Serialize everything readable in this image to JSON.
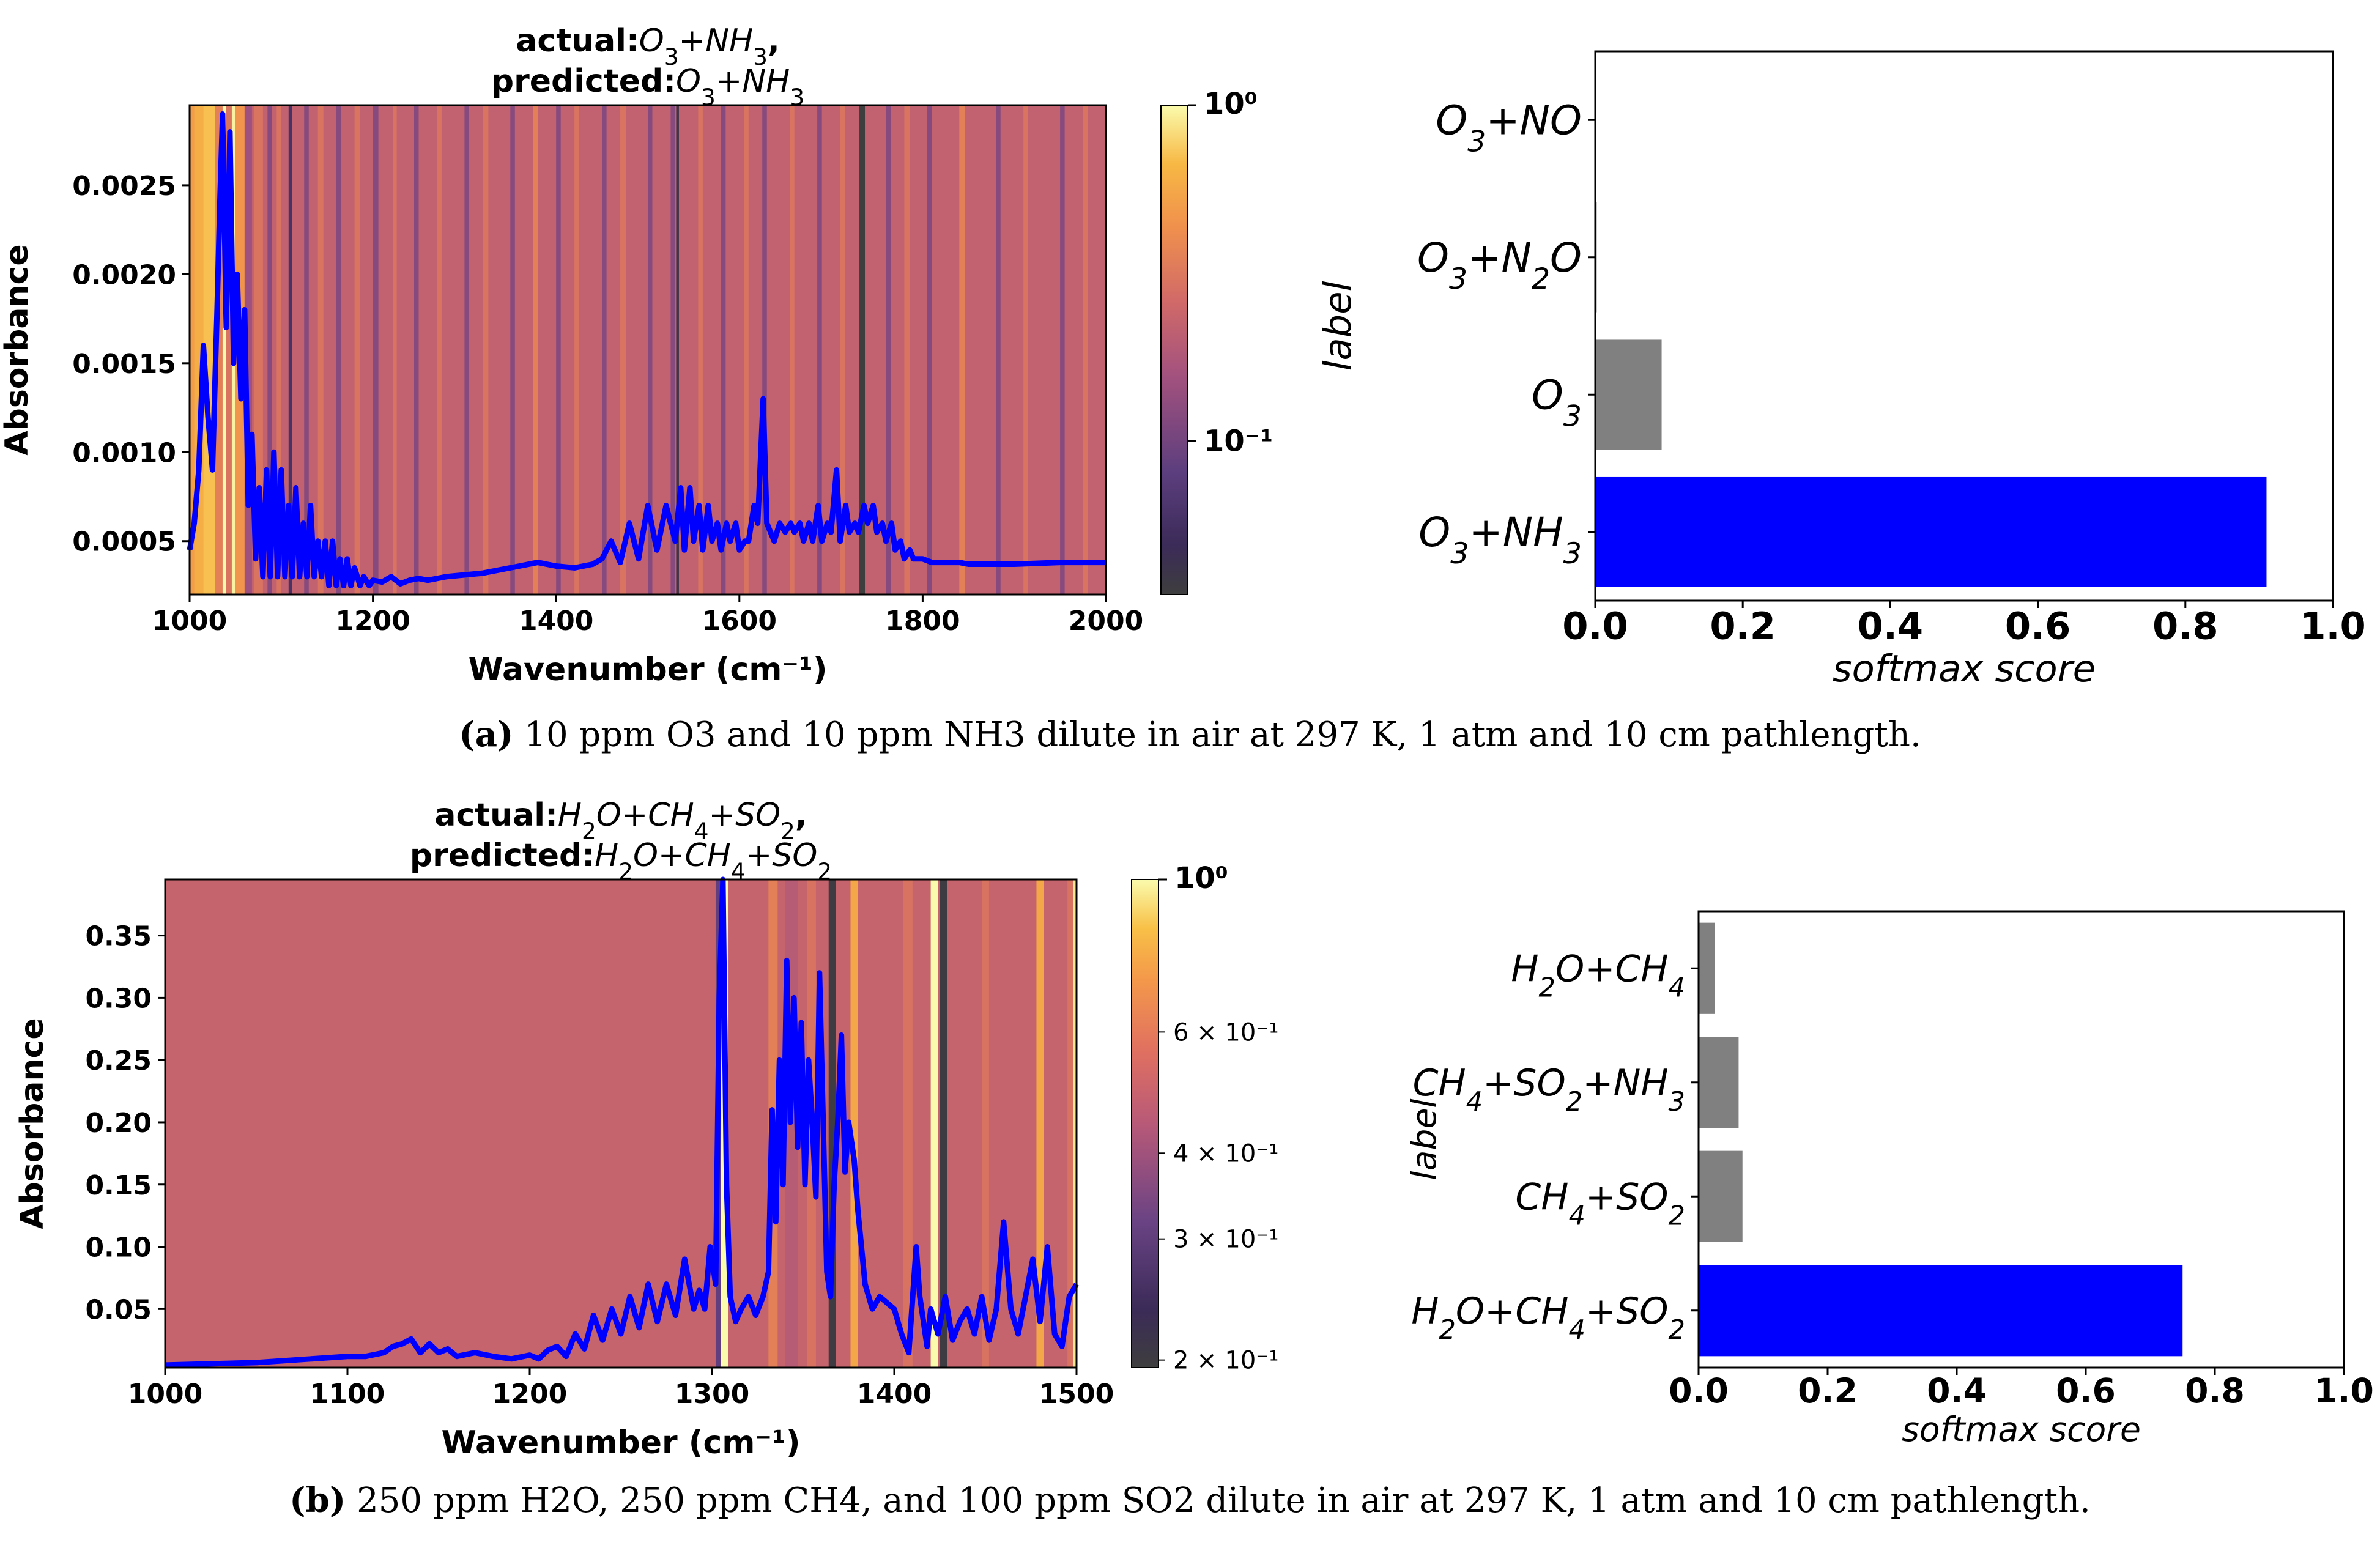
{
  "chart_data": [
    {
      "type": "line",
      "panel": "a-spectrum",
      "title_line1": "actual:O3+NH3,",
      "title_line2": "predicted:O3+NH3",
      "xlabel": "Wavenumber (cm⁻¹)",
      "ylabel": "Absorbance",
      "xlim": [
        1000,
        2000
      ],
      "ylim": [
        0.0002,
        0.00295
      ],
      "xticks": [
        "1000",
        "1200",
        "1400",
        "1600",
        "1800",
        "2000"
      ],
      "yticks": [
        "0.0005",
        "0.0010",
        "0.0015",
        "0.0020",
        "0.0025"
      ],
      "colorbar": {
        "label_top": "10⁰",
        "label_mid": "10⁻¹",
        "scale": "log",
        "range": [
          0.035,
          1.0
        ]
      },
      "attention_base": 0.22,
      "attention_bands": [
        [
          1000,
          1005,
          0.5
        ],
        [
          1005,
          1015,
          0.6
        ],
        [
          1015,
          1028,
          0.7
        ],
        [
          1028,
          1036,
          0.35
        ],
        [
          1036,
          1040,
          1.0
        ],
        [
          1040,
          1046,
          0.3
        ],
        [
          1046,
          1050,
          0.95
        ],
        [
          1050,
          1060,
          0.45
        ],
        [
          1060,
          1068,
          0.15
        ],
        [
          1070,
          1080,
          0.3
        ],
        [
          1085,
          1090,
          0.12
        ],
        [
          1095,
          1100,
          0.3
        ],
        [
          1108,
          1112,
          0.06
        ],
        [
          1125,
          1130,
          0.12
        ],
        [
          1140,
          1146,
          0.3
        ],
        [
          1160,
          1165,
          0.12
        ],
        [
          1180,
          1186,
          0.3
        ],
        [
          1200,
          1206,
          0.12
        ],
        [
          1222,
          1226,
          0.3
        ],
        [
          1245,
          1250,
          0.12
        ],
        [
          1270,
          1275,
          0.3
        ],
        [
          1300,
          1305,
          0.12
        ],
        [
          1320,
          1326,
          0.3
        ],
        [
          1350,
          1355,
          0.12
        ],
        [
          1375,
          1380,
          0.35
        ],
        [
          1400,
          1405,
          0.12
        ],
        [
          1420,
          1425,
          0.3
        ],
        [
          1450,
          1455,
          0.12
        ],
        [
          1470,
          1476,
          0.3
        ],
        [
          1500,
          1505,
          0.12
        ],
        [
          1525,
          1530,
          0.12
        ],
        [
          1531,
          1534,
          0.04
        ],
        [
          1555,
          1560,
          0.3
        ],
        [
          1580,
          1585,
          0.12
        ],
        [
          1605,
          1610,
          0.3
        ],
        [
          1625,
          1630,
          0.12
        ],
        [
          1655,
          1660,
          0.3
        ],
        [
          1685,
          1690,
          0.12
        ],
        [
          1710,
          1715,
          0.3
        ],
        [
          1731,
          1737,
          0.035
        ],
        [
          1760,
          1765,
          0.12
        ],
        [
          1780,
          1786,
          0.3
        ],
        [
          1805,
          1810,
          0.12
        ],
        [
          1840,
          1846,
          0.35
        ],
        [
          1880,
          1885,
          0.12
        ],
        [
          1910,
          1915,
          0.3
        ],
        [
          1950,
          1955,
          0.12
        ],
        [
          1975,
          1980,
          0.3
        ]
      ],
      "series": [
        {
          "name": "spectrum",
          "color": "#0000ff",
          "x": [
            1000,
            1005,
            1010,
            1015,
            1020,
            1025,
            1030,
            1033,
            1036,
            1040,
            1044,
            1048,
            1052,
            1056,
            1060,
            1064,
            1068,
            1072,
            1076,
            1080,
            1084,
            1088,
            1092,
            1096,
            1100,
            1104,
            1108,
            1112,
            1116,
            1120,
            1124,
            1128,
            1132,
            1136,
            1140,
            1144,
            1148,
            1152,
            1156,
            1160,
            1164,
            1168,
            1172,
            1176,
            1180,
            1186,
            1190,
            1196,
            1200,
            1210,
            1220,
            1230,
            1240,
            1250,
            1260,
            1280,
            1300,
            1320,
            1340,
            1360,
            1380,
            1400,
            1420,
            1440,
            1450,
            1460,
            1470,
            1480,
            1490,
            1500,
            1510,
            1520,
            1530,
            1536,
            1540,
            1546,
            1550,
            1556,
            1560,
            1566,
            1570,
            1576,
            1580,
            1586,
            1590,
            1596,
            1600,
            1606,
            1610,
            1616,
            1620,
            1626,
            1630,
            1634,
            1638,
            1644,
            1650,
            1656,
            1660,
            1666,
            1670,
            1676,
            1680,
            1686,
            1690,
            1696,
            1700,
            1706,
            1710,
            1716,
            1720,
            1726,
            1730,
            1736,
            1740,
            1746,
            1750,
            1756,
            1760,
            1766,
            1770,
            1776,
            1780,
            1786,
            1790,
            1800,
            1810,
            1820,
            1830,
            1840,
            1850,
            1900,
            1950,
            2000
          ],
          "y": [
            0.00045,
            0.0006,
            0.0009,
            0.0016,
            0.0012,
            0.0009,
            0.0018,
            0.0024,
            0.0029,
            0.0017,
            0.0028,
            0.0015,
            0.002,
            0.0013,
            0.0018,
            0.0007,
            0.0011,
            0.0004,
            0.0008,
            0.0003,
            0.0009,
            0.0003,
            0.001,
            0.0003,
            0.0009,
            0.0003,
            0.0007,
            0.0003,
            0.0008,
            0.0003,
            0.0006,
            0.0003,
            0.0007,
            0.0003,
            0.0005,
            0.0003,
            0.0005,
            0.00025,
            0.0005,
            0.00025,
            0.0004,
            0.00025,
            0.0004,
            0.00025,
            0.00035,
            0.00025,
            0.0003,
            0.00025,
            0.00028,
            0.00027,
            0.0003,
            0.00026,
            0.00028,
            0.00029,
            0.00028,
            0.0003,
            0.00031,
            0.00032,
            0.00034,
            0.00036,
            0.00038,
            0.00036,
            0.00035,
            0.00037,
            0.0004,
            0.0005,
            0.00038,
            0.0006,
            0.0004,
            0.0007,
            0.00045,
            0.0007,
            0.0005,
            0.0008,
            0.00045,
            0.0008,
            0.0005,
            0.0007,
            0.00045,
            0.0007,
            0.0005,
            0.0006,
            0.00045,
            0.0006,
            0.0005,
            0.0006,
            0.00045,
            0.0005,
            0.0005,
            0.0007,
            0.0006,
            0.0013,
            0.0006,
            0.00055,
            0.0005,
            0.0006,
            0.00055,
            0.0006,
            0.00055,
            0.0006,
            0.0005,
            0.0006,
            0.0005,
            0.0007,
            0.0005,
            0.0006,
            0.00055,
            0.0009,
            0.0005,
            0.0007,
            0.00055,
            0.0006,
            0.00055,
            0.0007,
            0.0006,
            0.0007,
            0.00055,
            0.0006,
            0.0005,
            0.0006,
            0.00045,
            0.0005,
            0.0004,
            0.00045,
            0.0004,
            0.0004,
            0.00038,
            0.00038,
            0.00038,
            0.00038,
            0.00037,
            0.00037,
            0.00038,
            0.00038
          ]
        }
      ]
    },
    {
      "type": "bar",
      "orientation": "horizontal",
      "panel": "a-scores",
      "xlabel": "softmax score",
      "ylabel": "label",
      "xlim": [
        0,
        1
      ],
      "xticks": [
        "0.0",
        "0.2",
        "0.4",
        "0.6",
        "0.8",
        "1.0"
      ],
      "categories": [
        "O3+NO",
        "O3+N2O",
        "O3",
        "O3+NH3"
      ],
      "values": [
        0.0,
        0.002,
        0.09,
        0.91
      ],
      "colors": [
        "#808080",
        "#808080",
        "#808080",
        "#0000ff"
      ]
    },
    {
      "type": "line",
      "panel": "b-spectrum",
      "title_line1": "actual:H2O+CH4+SO2,",
      "title_line2": "predicted:H2O+CH4+SO2",
      "xlabel": "Wavenumber (cm⁻¹)",
      "ylabel": "Absorbance",
      "xlim": [
        1000,
        1500
      ],
      "ylim": [
        0.003,
        0.395
      ],
      "xticks": [
        "1000",
        "1100",
        "1200",
        "1300",
        "1400",
        "1500"
      ],
      "yticks": [
        "0.05",
        "0.10",
        "0.15",
        "0.20",
        "0.25",
        "0.30",
        "0.35"
      ],
      "colorbar": {
        "label_top": "10⁰",
        "ticks": [
          {
            "v": 0.6,
            "label": "6 × 10⁻¹"
          },
          {
            "v": 0.4,
            "label": "4 × 10⁻¹"
          },
          {
            "v": 0.3,
            "label": "3 × 10⁻¹"
          },
          {
            "v": 0.2,
            "label": "2 × 10⁻¹"
          }
        ],
        "scale": "log",
        "range": [
          0.195,
          1.0
        ]
      },
      "attention_base": 0.49,
      "attention_bands": [
        [
          1302,
          1305,
          0.3
        ],
        [
          1305,
          1309,
          1.0
        ],
        [
          1331,
          1336,
          0.6
        ],
        [
          1340,
          1347,
          0.45
        ],
        [
          1352,
          1357,
          0.55
        ],
        [
          1364,
          1368,
          0.2
        ],
        [
          1376,
          1380,
          0.75
        ],
        [
          1405,
          1410,
          0.55
        ],
        [
          1420,
          1424,
          1.0
        ],
        [
          1425,
          1429,
          0.2
        ],
        [
          1448,
          1452,
          0.55
        ],
        [
          1478,
          1482,
          0.75
        ],
        [
          1495,
          1498,
          0.55
        ],
        [
          1498,
          1500,
          0.95
        ]
      ],
      "series": [
        {
          "name": "spectrum",
          "color": "#0000ff",
          "x": [
            1000,
            1050,
            1100,
            1110,
            1120,
            1125,
            1130,
            1135,
            1140,
            1145,
            1150,
            1155,
            1160,
            1170,
            1180,
            1190,
            1200,
            1205,
            1210,
            1215,
            1220,
            1225,
            1230,
            1235,
            1240,
            1245,
            1250,
            1255,
            1260,
            1265,
            1270,
            1275,
            1280,
            1285,
            1290,
            1293,
            1296,
            1299,
            1302,
            1304,
            1306,
            1308,
            1310,
            1313,
            1316,
            1320,
            1324,
            1328,
            1331,
            1333,
            1335,
            1337,
            1339,
            1341,
            1343,
            1345,
            1347,
            1349,
            1351,
            1353,
            1355,
            1357,
            1359,
            1361,
            1363,
            1365,
            1367,
            1369,
            1371,
            1373,
            1375,
            1378,
            1380,
            1384,
            1388,
            1392,
            1396,
            1400,
            1404,
            1408,
            1412,
            1414,
            1416,
            1418,
            1420,
            1424,
            1428,
            1432,
            1436,
            1440,
            1444,
            1448,
            1452,
            1456,
            1460,
            1464,
            1468,
            1472,
            1476,
            1480,
            1484,
            1488,
            1492,
            1496,
            1500
          ],
          "y": [
            0.005,
            0.007,
            0.012,
            0.012,
            0.015,
            0.02,
            0.022,
            0.026,
            0.015,
            0.022,
            0.015,
            0.018,
            0.012,
            0.015,
            0.012,
            0.01,
            0.013,
            0.01,
            0.017,
            0.02,
            0.012,
            0.03,
            0.018,
            0.045,
            0.025,
            0.05,
            0.03,
            0.06,
            0.035,
            0.07,
            0.04,
            0.07,
            0.045,
            0.09,
            0.05,
            0.065,
            0.05,
            0.1,
            0.07,
            0.3,
            0.395,
            0.15,
            0.06,
            0.04,
            0.05,
            0.06,
            0.045,
            0.06,
            0.08,
            0.21,
            0.12,
            0.25,
            0.15,
            0.33,
            0.2,
            0.3,
            0.18,
            0.28,
            0.15,
            0.25,
            0.2,
            0.14,
            0.32,
            0.2,
            0.08,
            0.06,
            0.15,
            0.2,
            0.27,
            0.16,
            0.2,
            0.17,
            0.13,
            0.07,
            0.05,
            0.06,
            0.055,
            0.05,
            0.03,
            0.015,
            0.1,
            0.06,
            0.04,
            0.02,
            0.05,
            0.03,
            0.06,
            0.025,
            0.04,
            0.05,
            0.03,
            0.06,
            0.025,
            0.05,
            0.12,
            0.05,
            0.03,
            0.06,
            0.09,
            0.04,
            0.1,
            0.03,
            0.02,
            0.06,
            0.07
          ]
        }
      ]
    },
    {
      "type": "bar",
      "orientation": "horizontal",
      "panel": "b-scores",
      "xlabel": "softmax score",
      "ylabel": "label",
      "xlim": [
        0,
        1
      ],
      "xticks": [
        "0.0",
        "0.2",
        "0.4",
        "0.6",
        "0.8",
        "1.0"
      ],
      "categories": [
        "H2O+CH4",
        "CH4+SO2+NH3",
        "CH4+SO2",
        "H2O+CH4+SO2"
      ],
      "values": [
        0.025,
        0.062,
        0.068,
        0.75
      ],
      "colors": [
        "#808080",
        "#808080",
        "#808080",
        "#0000ff"
      ]
    }
  ],
  "captions": {
    "a_letter": "(a)",
    "a_text": "10 ppm O3 and 10 ppm NH3 dilute in air at 297 K, 1 atm and 10 cm pathlength.",
    "b_letter": "(b)",
    "b_text": "250 ppm H2O, 250 ppm CH4, and 100 ppm SO2 dilute in air at 297 K, 1 atm and 10 cm pathlength."
  }
}
